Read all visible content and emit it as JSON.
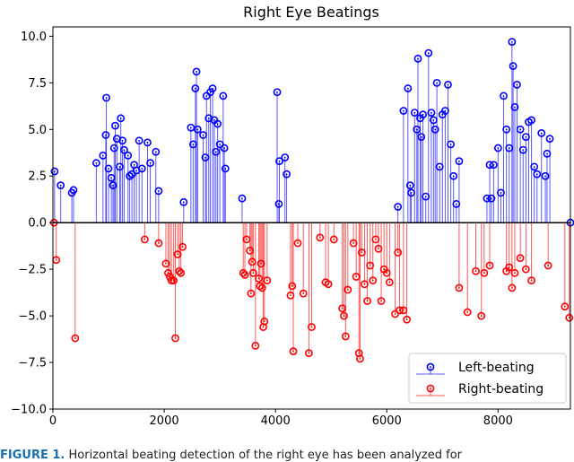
{
  "chart_data": {
    "type": "stem",
    "title": "Right Eye Beatings",
    "xlabel": "",
    "ylabel": "",
    "xlim": [
      0,
      9300
    ],
    "ylim": [
      -10,
      10.5
    ],
    "xticks": [
      0,
      2000,
      4000,
      6000,
      8000
    ],
    "yticks": [
      -10.0,
      -7.5,
      -5.0,
      -2.5,
      0.0,
      2.5,
      5.0,
      7.5,
      10.0
    ],
    "ytick_labels": [
      "−10.0",
      "−7.5",
      "−5.0",
      "−2.5",
      "0.0",
      "2.5",
      "5.0",
      "7.5",
      "10.0"
    ],
    "legend_position": "lower-right",
    "series": [
      {
        "name": "Left-beating",
        "color": "#0000ff",
        "points": [
          [
            30,
            2.75
          ],
          [
            140,
            2.0
          ],
          [
            340,
            1.6
          ],
          [
            370,
            1.75
          ],
          [
            780,
            3.2
          ],
          [
            900,
            3.6
          ],
          [
            950,
            4.7
          ],
          [
            960,
            6.7
          ],
          [
            1000,
            2.9
          ],
          [
            1050,
            2.4
          ],
          [
            1080,
            2.0
          ],
          [
            1100,
            4.0
          ],
          [
            1120,
            5.2
          ],
          [
            1150,
            4.5
          ],
          [
            1200,
            3.0
          ],
          [
            1220,
            5.6
          ],
          [
            1250,
            4.4
          ],
          [
            1280,
            3.9
          ],
          [
            1350,
            3.6
          ],
          [
            1380,
            2.5
          ],
          [
            1420,
            2.6
          ],
          [
            1460,
            3.1
          ],
          [
            1500,
            2.8
          ],
          [
            1550,
            4.4
          ],
          [
            1600,
            2.9
          ],
          [
            1700,
            4.3
          ],
          [
            1750,
            3.2
          ],
          [
            1850,
            3.8
          ],
          [
            1900,
            1.7
          ],
          [
            2350,
            1.1
          ],
          [
            2480,
            5.1
          ],
          [
            2520,
            4.2
          ],
          [
            2560,
            7.2
          ],
          [
            2580,
            8.1
          ],
          [
            2600,
            5.0
          ],
          [
            2700,
            4.7
          ],
          [
            2740,
            3.5
          ],
          [
            2760,
            6.8
          ],
          [
            2800,
            5.6
          ],
          [
            2830,
            7.0
          ],
          [
            2870,
            7.2
          ],
          [
            2900,
            5.5
          ],
          [
            2930,
            3.8
          ],
          [
            2960,
            5.3
          ],
          [
            3000,
            4.2
          ],
          [
            3060,
            6.8
          ],
          [
            3080,
            4.0
          ],
          [
            3100,
            2.9
          ],
          [
            3400,
            1.3
          ],
          [
            4030,
            7.0
          ],
          [
            4060,
            1.0
          ],
          [
            4070,
            3.3
          ],
          [
            4170,
            3.5
          ],
          [
            4200,
            2.6
          ],
          [
            6200,
            0.85
          ],
          [
            6300,
            6.0
          ],
          [
            6380,
            7.2
          ],
          [
            6420,
            2.0
          ],
          [
            6440,
            1.6
          ],
          [
            6500,
            5.9
          ],
          [
            6540,
            5.0
          ],
          [
            6560,
            8.8
          ],
          [
            6600,
            5.6
          ],
          [
            6620,
            4.6
          ],
          [
            6650,
            5.8
          ],
          [
            6700,
            1.4
          ],
          [
            6750,
            9.1
          ],
          [
            6800,
            5.9
          ],
          [
            6840,
            5.5
          ],
          [
            6870,
            5.0
          ],
          [
            6900,
            7.5
          ],
          [
            6950,
            3.0
          ],
          [
            7000,
            5.8
          ],
          [
            7050,
            6.0
          ],
          [
            7100,
            7.4
          ],
          [
            7150,
            4.2
          ],
          [
            7200,
            2.5
          ],
          [
            7250,
            1.0
          ],
          [
            7300,
            3.3
          ],
          [
            7800,
            1.3
          ],
          [
            7850,
            3.1
          ],
          [
            7880,
            1.3
          ],
          [
            7920,
            3.1
          ],
          [
            8000,
            4.0
          ],
          [
            8050,
            1.6
          ],
          [
            8100,
            6.8
          ],
          [
            8150,
            5.0
          ],
          [
            8200,
            4.0
          ],
          [
            8250,
            9.7
          ],
          [
            8270,
            8.4
          ],
          [
            8300,
            6.2
          ],
          [
            8340,
            7.4
          ],
          [
            8400,
            5.0
          ],
          [
            8450,
            3.9
          ],
          [
            8500,
            4.6
          ],
          [
            8550,
            5.4
          ],
          [
            8600,
            5.5
          ],
          [
            8650,
            3.0
          ],
          [
            8700,
            2.6
          ],
          [
            8780,
            4.8
          ],
          [
            8850,
            2.5
          ],
          [
            8880,
            3.7
          ],
          [
            8930,
            4.5
          ],
          [
            9300,
            0
          ]
        ]
      },
      {
        "name": "Right-beating",
        "color": "#ff0000",
        "points": [
          [
            20,
            0
          ],
          [
            60,
            -2.0
          ],
          [
            400,
            -6.2
          ],
          [
            1650,
            -0.9
          ],
          [
            1900,
            -1.1
          ],
          [
            2030,
            -2.2
          ],
          [
            2070,
            -2.7
          ],
          [
            2100,
            -2.9
          ],
          [
            2130,
            -3.1
          ],
          [
            2170,
            -3.1
          ],
          [
            2200,
            -6.2
          ],
          [
            2240,
            -1.7
          ],
          [
            2270,
            -2.6
          ],
          [
            2300,
            -2.7
          ],
          [
            2330,
            -1.3
          ],
          [
            3420,
            -2.7
          ],
          [
            3450,
            -2.8
          ],
          [
            3480,
            -0.9
          ],
          [
            3540,
            -1.5
          ],
          [
            3560,
            -3.8
          ],
          [
            3580,
            -2.1
          ],
          [
            3600,
            -2.7
          ],
          [
            3640,
            -6.6
          ],
          [
            3700,
            -3.0
          ],
          [
            3720,
            -3.4
          ],
          [
            3740,
            -2.2
          ],
          [
            3760,
            -3.5
          ],
          [
            3780,
            -5.6
          ],
          [
            3800,
            -5.3
          ],
          [
            3850,
            -3.1
          ],
          [
            4270,
            -3.9
          ],
          [
            4300,
            -3.4
          ],
          [
            4320,
            -6.9
          ],
          [
            4400,
            -1.1
          ],
          [
            4500,
            -3.8
          ],
          [
            4600,
            -7.0
          ],
          [
            4650,
            -5.6
          ],
          [
            4800,
            -0.8
          ],
          [
            4900,
            -3.2
          ],
          [
            4950,
            -3.3
          ],
          [
            5050,
            -0.9
          ],
          [
            5200,
            -4.6
          ],
          [
            5230,
            -5.0
          ],
          [
            5260,
            -6.1
          ],
          [
            5300,
            -3.6
          ],
          [
            5400,
            -1.1
          ],
          [
            5450,
            -2.9
          ],
          [
            5500,
            -7.0
          ],
          [
            5520,
            -7.3
          ],
          [
            5550,
            -1.6
          ],
          [
            5600,
            -3.3
          ],
          [
            5650,
            -4.2
          ],
          [
            5700,
            -2.3
          ],
          [
            5750,
            -3.1
          ],
          [
            5800,
            -0.9
          ],
          [
            5850,
            -1.4
          ],
          [
            5900,
            -4.2
          ],
          [
            5950,
            -2.5
          ],
          [
            6000,
            -2.7
          ],
          [
            6050,
            -3.2
          ],
          [
            6150,
            -4.9
          ],
          [
            6200,
            -1.6
          ],
          [
            6230,
            -4.7
          ],
          [
            6300,
            -4.7
          ],
          [
            6360,
            -5.2
          ],
          [
            7300,
            -3.5
          ],
          [
            7450,
            -4.8
          ],
          [
            7600,
            -2.6
          ],
          [
            7700,
            -5.0
          ],
          [
            7750,
            -2.7
          ],
          [
            7850,
            -2.3
          ],
          [
            8150,
            -2.6
          ],
          [
            8200,
            -2.4
          ],
          [
            8250,
            -3.5
          ],
          [
            8300,
            -2.7
          ],
          [
            8400,
            -1.9
          ],
          [
            8500,
            -2.5
          ],
          [
            8600,
            -3.1
          ],
          [
            8900,
            -2.3
          ],
          [
            9200,
            -4.5
          ],
          [
            9280,
            -5.1
          ]
        ]
      }
    ]
  },
  "caption": {
    "label": "FIGURE 1.",
    "text": "Horizontal beating detection of the right eye has been analyzed for"
  }
}
